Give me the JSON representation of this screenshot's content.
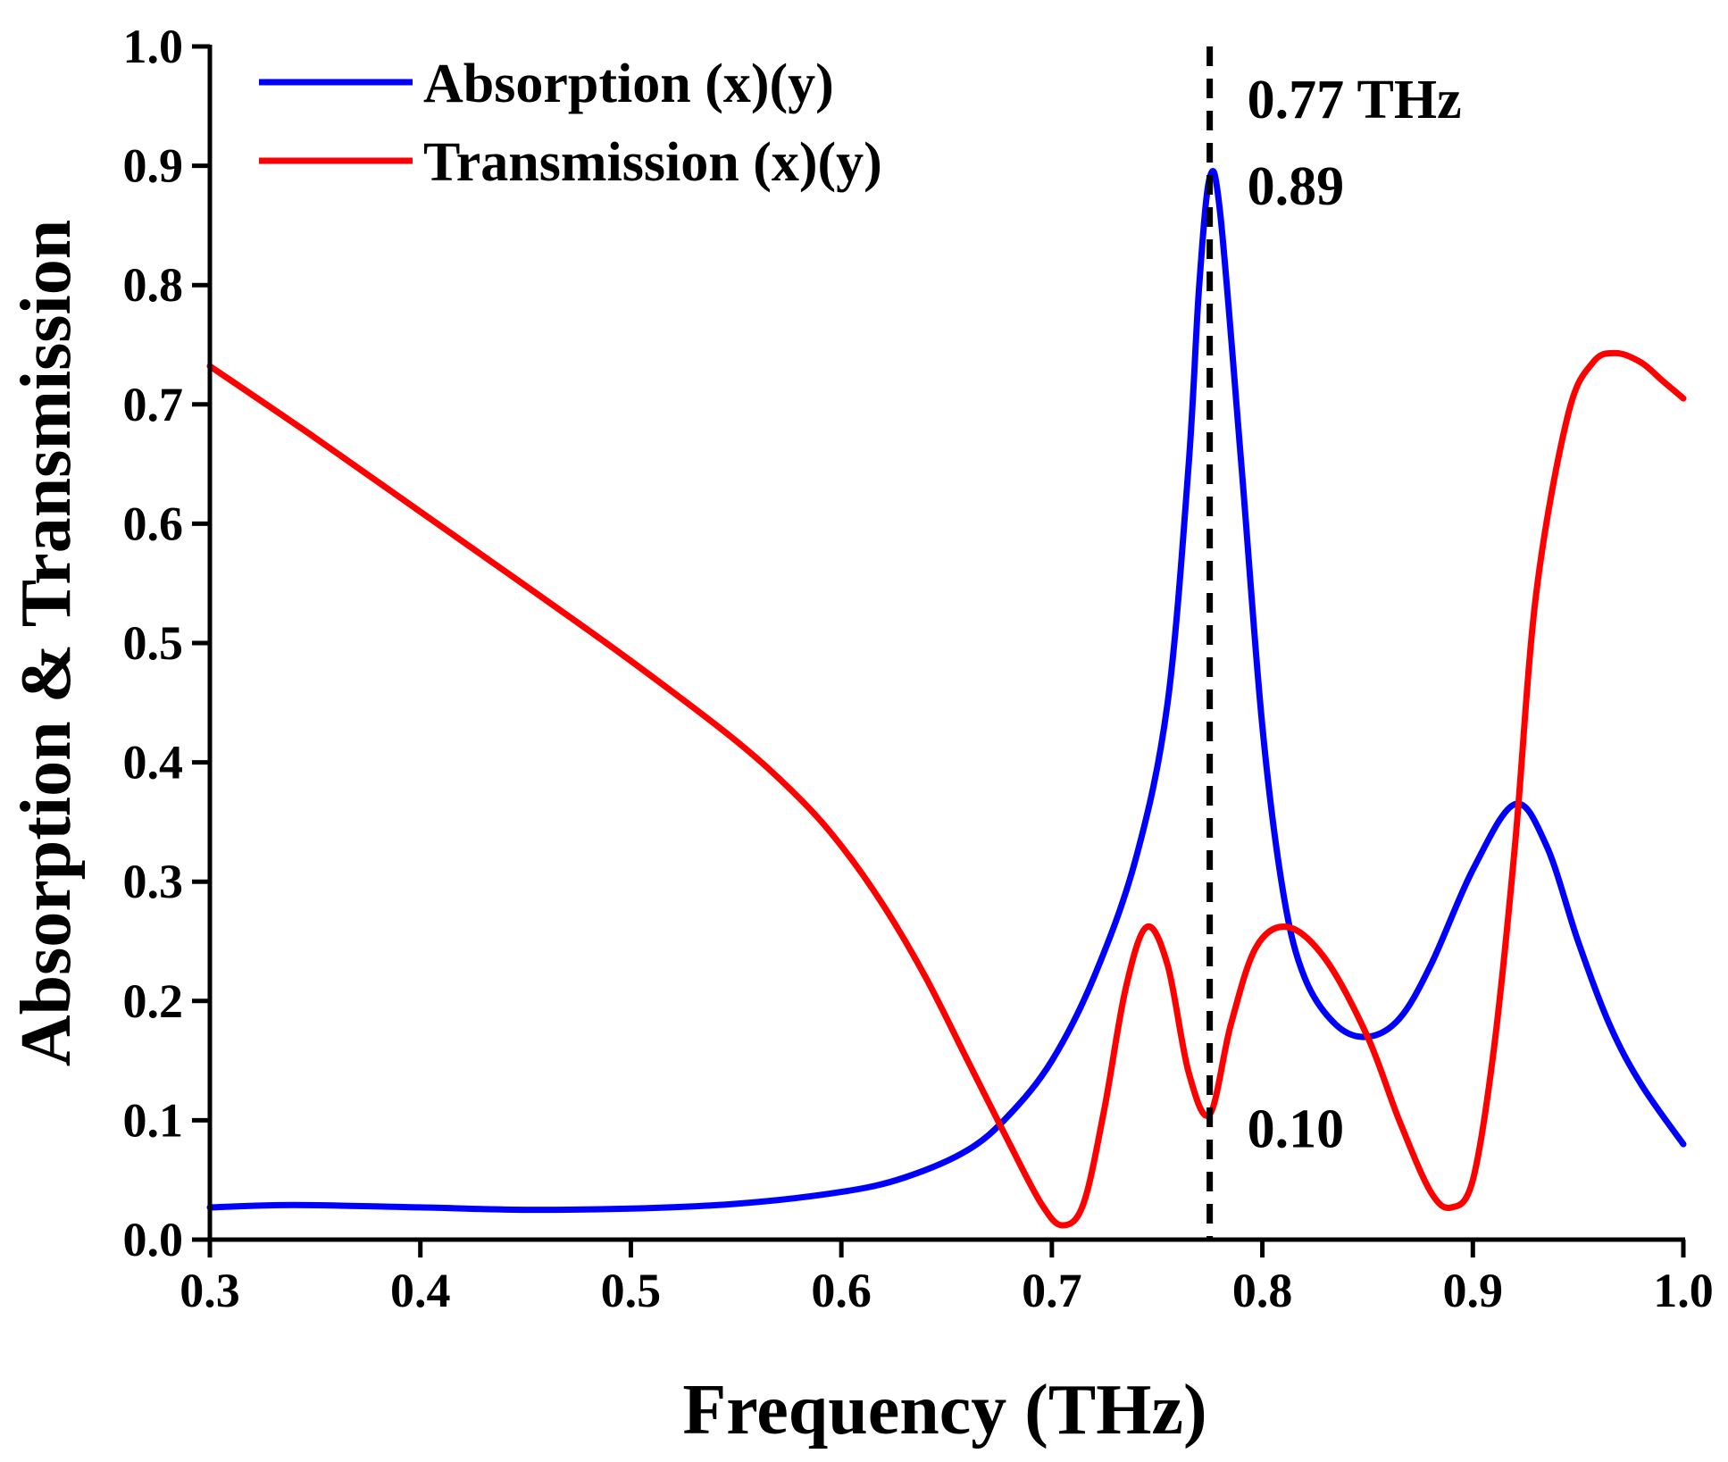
{
  "chart_data": {
    "type": "line",
    "xlabel": "Frequency (THz)",
    "ylabel": "Absorption & Transmission",
    "xlim": [
      0.3,
      1.0
    ],
    "ylim": [
      0.0,
      1.0
    ],
    "xticks": [
      "0.3",
      "0.4",
      "0.5",
      "0.6",
      "0.7",
      "0.8",
      "0.9",
      "1.0"
    ],
    "yticks": [
      "0.0",
      "0.1",
      "0.2",
      "0.3",
      "0.4",
      "0.5",
      "0.6",
      "0.7",
      "0.8",
      "0.9",
      "1.0"
    ],
    "grid": false,
    "legend_position": "top-left",
    "series": [
      {
        "name": "Absorption (x)(y)",
        "color": "#0000ff",
        "points": [
          [
            0.3,
            0.027
          ],
          [
            0.34,
            0.029
          ],
          [
            0.4,
            0.027
          ],
          [
            0.45,
            0.025
          ],
          [
            0.5,
            0.026
          ],
          [
            0.55,
            0.03
          ],
          [
            0.6,
            0.04
          ],
          [
            0.63,
            0.052
          ],
          [
            0.66,
            0.075
          ],
          [
            0.68,
            0.105
          ],
          [
            0.7,
            0.15
          ],
          [
            0.72,
            0.22
          ],
          [
            0.74,
            0.32
          ],
          [
            0.755,
            0.45
          ],
          [
            0.765,
            0.65
          ],
          [
            0.77,
            0.8
          ],
          [
            0.775,
            0.89
          ],
          [
            0.78,
            0.86
          ],
          [
            0.79,
            0.65
          ],
          [
            0.8,
            0.43
          ],
          [
            0.81,
            0.29
          ],
          [
            0.82,
            0.22
          ],
          [
            0.835,
            0.18
          ],
          [
            0.85,
            0.17
          ],
          [
            0.865,
            0.185
          ],
          [
            0.88,
            0.23
          ],
          [
            0.9,
            0.31
          ],
          [
            0.92,
            0.365
          ],
          [
            0.935,
            0.33
          ],
          [
            0.95,
            0.25
          ],
          [
            0.965,
            0.18
          ],
          [
            0.98,
            0.13
          ],
          [
            1.0,
            0.08
          ]
        ]
      },
      {
        "name": "Transmission (x)(y)",
        "color": "#ff0000",
        "points": [
          [
            0.3,
            0.732
          ],
          [
            0.35,
            0.672
          ],
          [
            0.4,
            0.61
          ],
          [
            0.45,
            0.548
          ],
          [
            0.5,
            0.485
          ],
          [
            0.55,
            0.418
          ],
          [
            0.58,
            0.37
          ],
          [
            0.6,
            0.33
          ],
          [
            0.62,
            0.28
          ],
          [
            0.64,
            0.22
          ],
          [
            0.66,
            0.15
          ],
          [
            0.68,
            0.08
          ],
          [
            0.695,
            0.03
          ],
          [
            0.705,
            0.012
          ],
          [
            0.715,
            0.03
          ],
          [
            0.725,
            0.11
          ],
          [
            0.735,
            0.21
          ],
          [
            0.745,
            0.262
          ],
          [
            0.755,
            0.23
          ],
          [
            0.765,
            0.14
          ],
          [
            0.775,
            0.105
          ],
          [
            0.785,
            0.18
          ],
          [
            0.797,
            0.245
          ],
          [
            0.812,
            0.262
          ],
          [
            0.83,
            0.235
          ],
          [
            0.85,
            0.17
          ],
          [
            0.865,
            0.1
          ],
          [
            0.88,
            0.04
          ],
          [
            0.89,
            0.027
          ],
          [
            0.9,
            0.05
          ],
          [
            0.91,
            0.16
          ],
          [
            0.92,
            0.33
          ],
          [
            0.93,
            0.54
          ],
          [
            0.945,
            0.69
          ],
          [
            0.957,
            0.735
          ],
          [
            0.968,
            0.743
          ],
          [
            0.98,
            0.735
          ],
          [
            0.99,
            0.72
          ],
          [
            1.0,
            0.705
          ]
        ]
      }
    ],
    "annotations": [
      {
        "text": "0.77 THz",
        "x": 0.775,
        "y": 1.0
      },
      {
        "text": "0.89",
        "x": 0.775,
        "y": 0.89
      },
      {
        "text": "0.10",
        "x": 0.775,
        "y": 0.1
      }
    ],
    "vline": {
      "x": 0.775,
      "style": "dashed"
    }
  }
}
